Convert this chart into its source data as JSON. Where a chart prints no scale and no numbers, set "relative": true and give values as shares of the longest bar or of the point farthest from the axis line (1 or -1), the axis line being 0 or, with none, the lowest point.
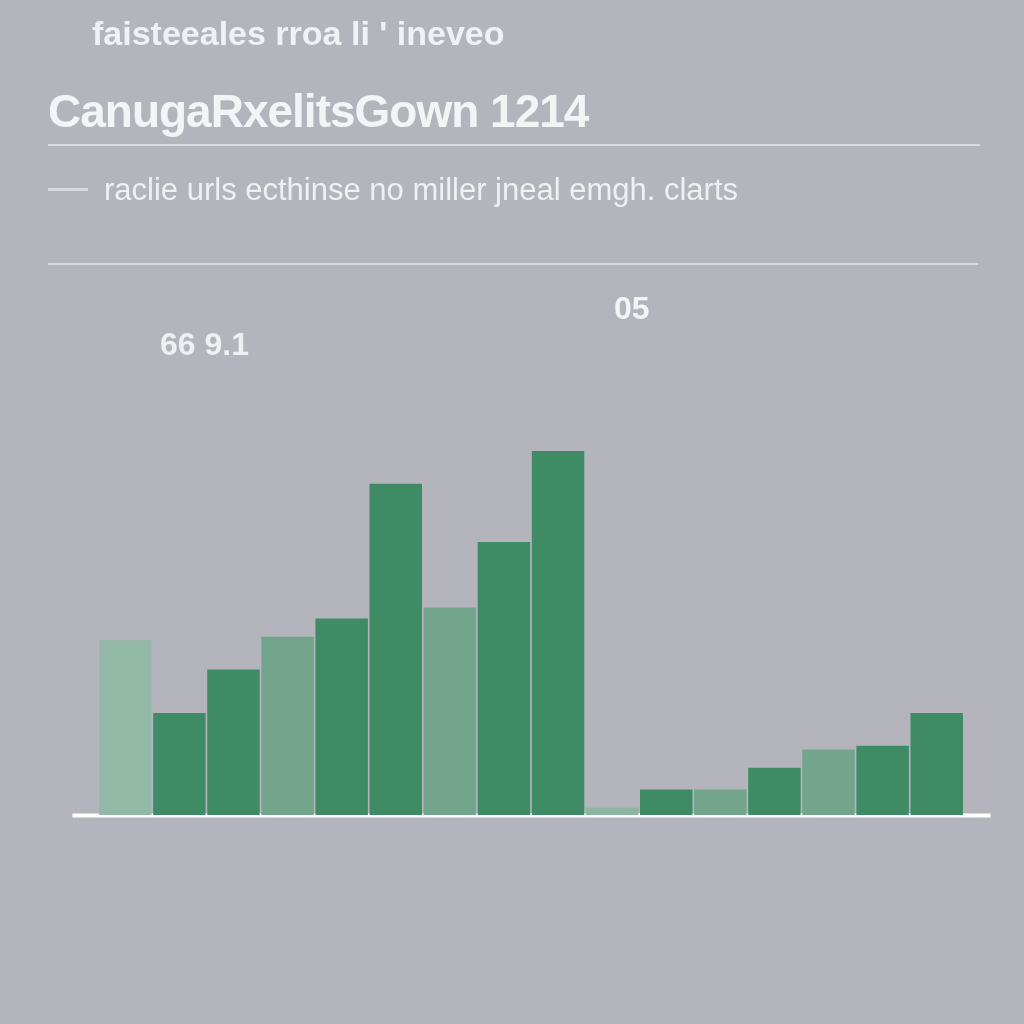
{
  "chart_data": {
    "type": "bar",
    "title": "CanugaRxelitsGown 1214",
    "subtitle": "raclie urls ecthinse no miller jneal emgh. clarts",
    "annotations": [
      "faisteeales rroa li ' ineveo",
      "66 9.1",
      "05"
    ],
    "relative": true,
    "categories": [
      null,
      null,
      null,
      null,
      null,
      null,
      null,
      null,
      null,
      null,
      null,
      null,
      null,
      null,
      null,
      null
    ],
    "values": [
      0.48,
      0.28,
      0.4,
      0.49,
      0.54,
      0.91,
      0.57,
      0.75,
      1,
      0.02,
      0.07,
      0.07,
      0.13,
      0.18,
      0.19,
      0.28
    ],
    "colors": [
      "#93b9a6",
      "#3e8b66",
      "#3e8b66",
      "#72a58b",
      "#3e8b66",
      "#3e8b66",
      "#72a58b",
      "#3e8b66",
      "#3e8b66",
      "#8db5a0",
      "#3e8b66",
      "#72a58b",
      "#3e8b66",
      "#72a58b",
      "#3e8b66",
      "#3e8b66"
    ]
  }
}
